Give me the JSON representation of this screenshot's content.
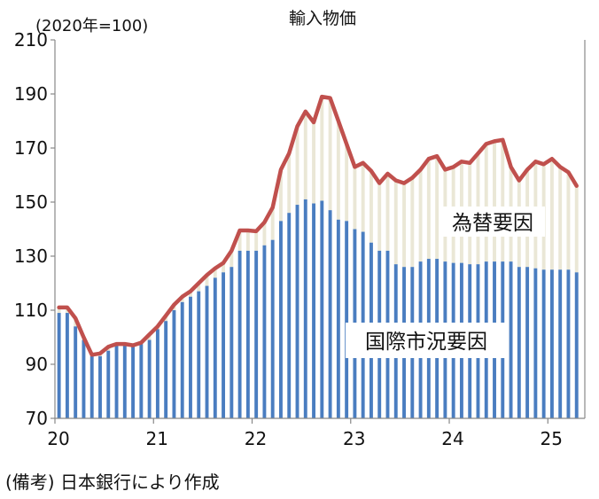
{
  "chart_data": {
    "type": "bar",
    "title": "輸入物価",
    "unit_label": "(2020年=100)",
    "ylim": [
      70,
      210
    ],
    "y_ticks": [
      "70",
      "90",
      "110",
      "130",
      "150",
      "170",
      "190",
      "210"
    ],
    "x_ticks": [
      "20",
      "21",
      "22",
      "23",
      "24",
      "25"
    ],
    "grid": false,
    "annotations": {
      "fx_factor": "為替要因",
      "market_factor": "国際市況要因"
    },
    "colors": {
      "market_bar": "#4a7dc0",
      "fx_bar": "#eae7d6",
      "total_line": "#c0504d",
      "fx_label": "#5b6a23",
      "market_label": "#3b68b0"
    },
    "x_start": "2020-01",
    "series": [
      {
        "name": "輸入物価",
        "role": "line",
        "values": [
          111,
          111,
          107,
          100,
          93.5,
          94,
          96.5,
          97.5,
          97.5,
          97,
          98,
          101,
          104,
          108,
          112,
          115,
          117,
          120,
          123,
          125.5,
          127.5,
          132,
          139.5,
          139.5,
          139.2,
          142.5,
          148,
          162,
          168,
          178,
          183.5,
          179.5,
          189,
          188.5,
          180,
          171.5,
          163,
          164.5,
          161.5,
          157,
          160.5,
          158,
          157,
          159,
          162,
          166,
          167,
          162,
          163,
          165,
          164.5,
          168,
          171.5,
          172.5,
          173,
          163,
          158,
          162,
          165,
          164,
          166,
          163,
          161,
          156
        ]
      },
      {
        "name": "国際市況要因",
        "role": "bar",
        "values": [
          109,
          109,
          104,
          99,
          93,
          93,
          95,
          97,
          97,
          96.5,
          97.5,
          99,
          103,
          106,
          110,
          113,
          115,
          117,
          119,
          122,
          124,
          126,
          132,
          132,
          132,
          134,
          136,
          143,
          146,
          149,
          151,
          149.5,
          150.5,
          147,
          143.5,
          143,
          140,
          139,
          135,
          132,
          132,
          127,
          126,
          126,
          128,
          129,
          129,
          128,
          127.5,
          127.5,
          127,
          127,
          128,
          128,
          128,
          128,
          126,
          126,
          125.5,
          125,
          125,
          125,
          125,
          124
        ]
      }
    ]
  },
  "footnote": "(備考) 日本銀行により作成"
}
